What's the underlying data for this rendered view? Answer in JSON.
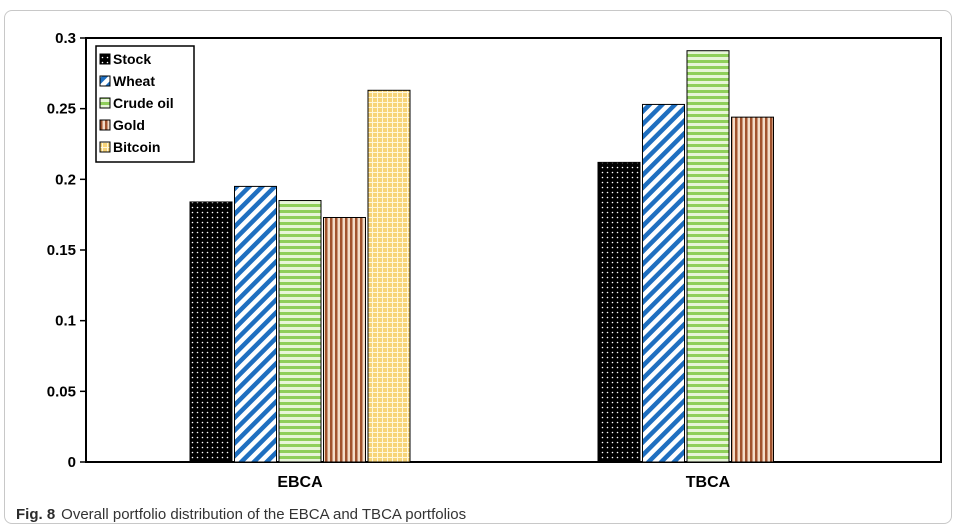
{
  "caption": {
    "fig_label": "Fig. 8",
    "text": "Overall portfolio distribution of the EBCA and TBCA portfolios"
  },
  "chart_data": {
    "type": "bar",
    "categories": [
      "EBCA",
      "TBCA"
    ],
    "series": [
      {
        "name": "Stock",
        "values": [
          0.184,
          0.212
        ],
        "color": "#000000",
        "pattern": "dots"
      },
      {
        "name": "Wheat",
        "values": [
          0.195,
          0.253
        ],
        "color": "#1f6fc0",
        "pattern": "diagonal"
      },
      {
        "name": "Crude oil",
        "values": [
          0.185,
          0.291
        ],
        "color": "#8fcf5a",
        "pattern": "horizontal"
      },
      {
        "name": "Gold",
        "values": [
          0.173,
          0.244
        ],
        "color": "#a0522d",
        "pattern": "vertical"
      },
      {
        "name": "Bitcoin",
        "values": [
          0.263,
          null
        ],
        "color": "#f2c14e",
        "pattern": "crosshatch"
      }
    ],
    "yticks": [
      "0",
      "0.05",
      "0.1",
      "0.15",
      "0.2",
      "0.25",
      "0.3"
    ],
    "ylim": [
      0,
      0.3
    ],
    "grid": false,
    "legend_position": "top-left"
  }
}
